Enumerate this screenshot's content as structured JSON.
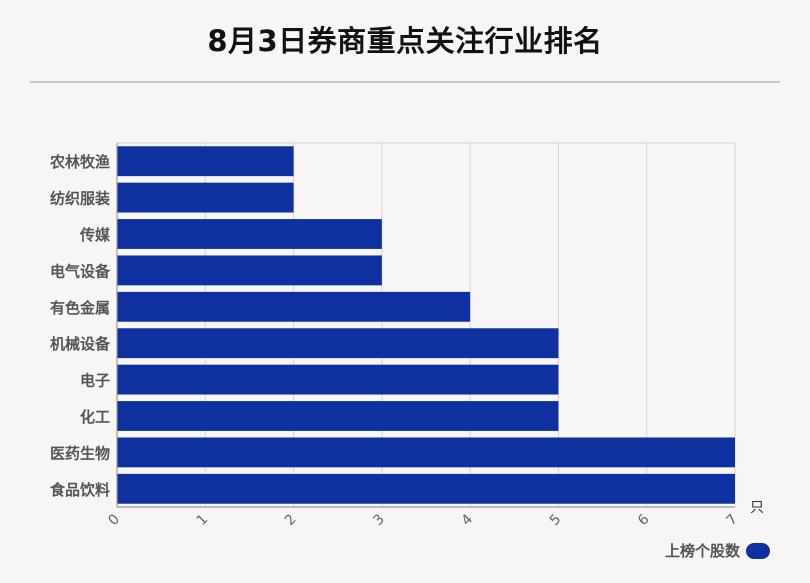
{
  "title": "8月3日券商重点关注行业排名",
  "legend": {
    "label": "上榜个股数"
  },
  "colors": {
    "bar": "#0e319f",
    "grid": "#d4d4d4",
    "axis": "#999999"
  },
  "chart_data": {
    "type": "bar",
    "orientation": "horizontal",
    "categories": [
      "农林牧渔",
      "纺织服装",
      "传媒",
      "电气设备",
      "有色金属",
      "机械设备",
      "电子",
      "化工",
      "医药生物",
      "食品饮料"
    ],
    "series": [
      {
        "name": "上榜个股数",
        "values": [
          2,
          2,
          3,
          3,
          4,
          5,
          5,
          5,
          7,
          7
        ]
      }
    ],
    "xlim": [
      0,
      7
    ],
    "xticks": [
      0,
      1,
      2,
      3,
      4,
      5,
      6,
      7
    ],
    "xunit": "只",
    "grid": true,
    "legend_position": "bottom-right"
  }
}
